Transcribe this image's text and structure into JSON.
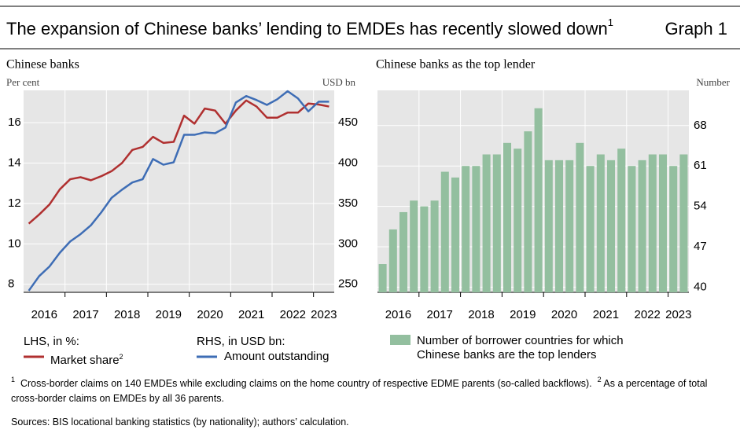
{
  "header": {
    "title": "The expansion of Chinese banks’ lending to EMDEs has recently slowed down",
    "title_note": "1",
    "graph_label": "Graph 1"
  },
  "chart_data": [
    {
      "type": "line",
      "title": "Chinese banks",
      "y_label": "Per cent",
      "y2_label": "USD bn",
      "categories": [
        "2016",
        null,
        null,
        null,
        "2017",
        null,
        null,
        null,
        "2018",
        null,
        null,
        null,
        "2019",
        null,
        null,
        null,
        "2020",
        null,
        null,
        null,
        "2021",
        null,
        null,
        null,
        "2022",
        null,
        null,
        null,
        "2023",
        null
      ],
      "ylim": [
        7.6,
        17.6
      ],
      "yticks": [
        8,
        10,
        12,
        14,
        16
      ],
      "y2lim": [
        240,
        490
      ],
      "y2ticks": [
        250,
        300,
        350,
        400,
        450
      ],
      "grid": true,
      "series": [
        {
          "name": "Market share",
          "note": "2",
          "legend_group": "LHS, in %:",
          "color": "#b03030",
          "axis": "y",
          "values": [
            11.0,
            11.45,
            11.95,
            12.7,
            13.2,
            13.3,
            13.15,
            13.35,
            13.6,
            14.0,
            14.65,
            14.8,
            15.3,
            15.0,
            15.05,
            16.35,
            15.95,
            16.7,
            16.6,
            15.95,
            16.6,
            17.1,
            16.8,
            16.25,
            16.25,
            16.5,
            16.5,
            16.95,
            16.9,
            16.8
          ]
        },
        {
          "name": "Amount outstanding",
          "legend_group": "RHS, in USD bn:",
          "color": "#3e6db5",
          "axis": "y2",
          "values": [
            242,
            260,
            272,
            289,
            303,
            312,
            323,
            339,
            357,
            367,
            376,
            380,
            405,
            398,
            401,
            435,
            435,
            438,
            437,
            444,
            475,
            483,
            478,
            472,
            479,
            489,
            480,
            464,
            476,
            476
          ]
        }
      ]
    },
    {
      "type": "bar",
      "title": "Chinese banks as the top lender",
      "y_label": "Number",
      "categories": [
        "2016",
        null,
        null,
        null,
        "2017",
        null,
        null,
        null,
        "2018",
        null,
        null,
        null,
        "2019",
        null,
        null,
        null,
        "2020",
        null,
        null,
        null,
        "2021",
        null,
        null,
        null,
        "2022",
        null,
        null,
        null,
        "2023",
        null
      ],
      "ylim": [
        39.1,
        74.1
      ],
      "yticks": [
        40,
        47,
        54,
        61,
        68
      ],
      "grid": true,
      "series": [
        {
          "name": "Number of borrower countries for which Chinese banks are the top lenders",
          "color": "#93bf9f",
          "values": [
            44,
            50,
            53,
            55,
            54,
            55,
            60,
            59,
            61,
            61,
            63,
            63,
            65,
            64,
            67,
            71,
            62,
            62,
            62,
            65,
            61,
            63,
            62,
            64,
            61,
            62,
            63,
            63,
            61,
            63
          ]
        }
      ]
    }
  ],
  "footnotes": [
    {
      "marker": "1",
      "text": "Cross-border claims on 140 EMDEs while excluding claims on the home country of respective EDME parents (so-called backflows)."
    },
    {
      "marker": "2",
      "text": "As a percentage of total cross-border claims on EMDEs by all 36 parents."
    }
  ],
  "sources": "Sources: BIS locational banking statistics (by nationality); authors’ calculation."
}
